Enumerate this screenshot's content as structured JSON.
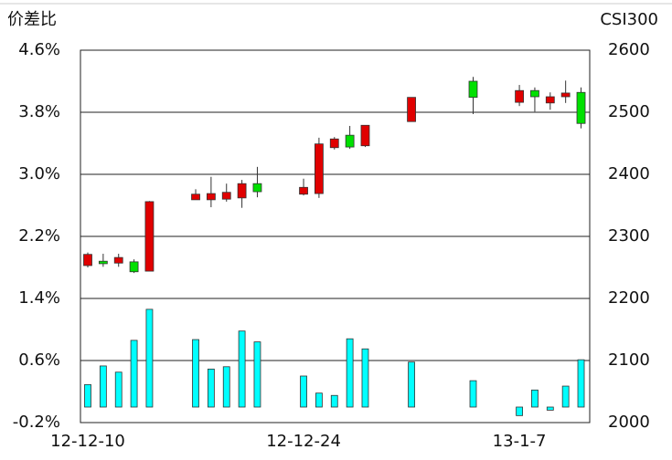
{
  "chart_data": {
    "type": "candlestick",
    "y_label": "价差比",
    "y2_label": "CSI300",
    "categories": [
      "12-12-10",
      null,
      null,
      null,
      null,
      null,
      null,
      null,
      null,
      null,
      null,
      null,
      null,
      null,
      "12-12-24",
      null,
      null,
      null,
      null,
      null,
      null,
      null,
      null,
      null,
      null,
      null,
      null,
      null,
      "13-1-7",
      null,
      null,
      null,
      null
    ],
    "ylim": [
      -0.2,
      4.6
    ],
    "yticks": [
      {
        "value": 4.6,
        "label": "4.6%"
      },
      {
        "value": 3.8,
        "label": "3.8%"
      },
      {
        "value": 3.0,
        "label": "3.0%"
      },
      {
        "value": 2.2,
        "label": "2.2%"
      },
      {
        "value": 1.4,
        "label": "1.4%"
      },
      {
        "value": 0.6,
        "label": "0.6%"
      },
      {
        "value": -0.2,
        "label": "-0.2%"
      }
    ],
    "y2lim": [
      2000,
      2600
    ],
    "y2ticks": [
      2600,
      2500,
      2400,
      2300,
      2200,
      2100,
      2000
    ],
    "grid": true,
    "series": [
      {
        "type": "bar",
        "axis": "y",
        "color": "#00ffff",
        "values": [
          0.29,
          0.53,
          0.45,
          0.86,
          1.26,
          null,
          null,
          0.87,
          0.49,
          0.52,
          0.98,
          0.84,
          null,
          null,
          0.4,
          0.18,
          0.15,
          0.88,
          0.75,
          null,
          null,
          0.58,
          null,
          null,
          null,
          0.34,
          null,
          null,
          -0.11,
          0.22,
          -0.04,
          0.27,
          0.61
        ]
      },
      {
        "type": "candlestick",
        "axis": "y2",
        "up_color": "#e00000",
        "down_color": "#00e000",
        "open": [
          2253,
          2260,
          2257,
          2259,
          2244,
          null,
          null,
          2359,
          2359,
          2360,
          2362,
          2385,
          null,
          null,
          2368,
          2369,
          2443,
          2463,
          2446,
          null,
          null,
          2485,
          null,
          null,
          null,
          2550,
          null,
          null,
          2516,
          2535,
          2515,
          2525,
          2532
        ],
        "high": [
          2274,
          2272,
          2272,
          2263,
          2357,
          null,
          null,
          2376,
          2396,
          2385,
          2391,
          2412,
          null,
          null,
          2393,
          2459,
          2460,
          2478,
          2479,
          null,
          null,
          2524,
          null,
          null,
          null,
          2557,
          null,
          null,
          2544,
          2540,
          2532,
          2551,
          2540
        ],
        "low": [
          2250,
          2251,
          2251,
          2241,
          2244,
          null,
          null,
          2359,
          2347,
          2356,
          2346,
          2363,
          null,
          null,
          2366,
          2362,
          2440,
          2441,
          2444,
          null,
          null,
          2485,
          null,
          null,
          null,
          2497,
          null,
          null,
          2510,
          2501,
          2504,
          2515,
          2474
        ],
        "close": [
          2271,
          2256,
          2266,
          2243,
          2356,
          null,
          null,
          2368,
          2369,
          2371,
          2385,
          2372,
          null,
          null,
          2379,
          2449,
          2457,
          2444,
          2479,
          null,
          null,
          2524,
          null,
          null,
          null,
          2524,
          null,
          null,
          2535,
          2525,
          2525,
          2531,
          2482
        ]
      }
    ]
  }
}
